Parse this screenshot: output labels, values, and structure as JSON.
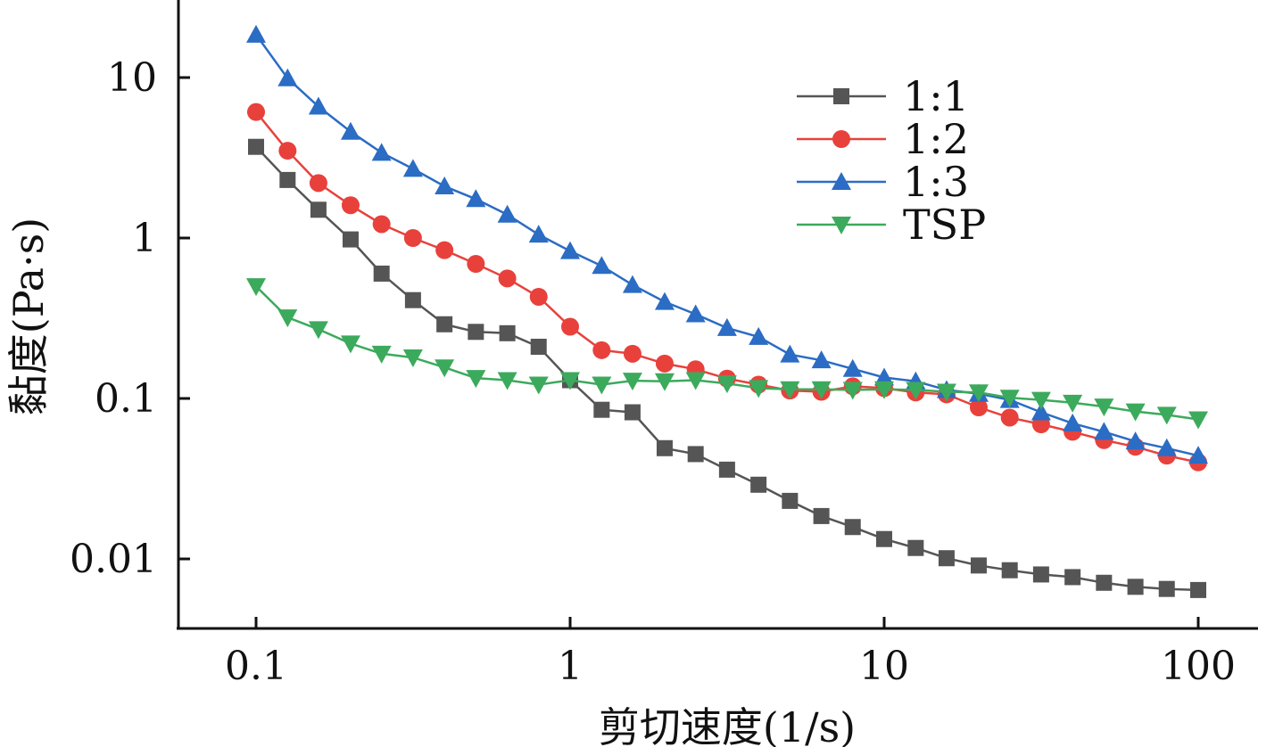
{
  "chart_data": {
    "type": "line",
    "xscale": "log",
    "yscale": "log",
    "xlabel": "剪切速度(1/s)",
    "ylabel": "黏度(Pa·s)",
    "xlim": [
      0.06,
      160
    ],
    "ylim": [
      0.004,
      50
    ],
    "xticks": [
      0.1,
      1,
      10,
      100
    ],
    "xtick_labels": [
      "0.1",
      "1",
      "10",
      "100"
    ],
    "yticks": [
      0.01,
      0.1,
      1,
      10
    ],
    "ytick_labels": [
      "0.01",
      "0.1",
      "1",
      "10"
    ],
    "grid": false,
    "legend_position": "top-right",
    "x": [
      0.1,
      0.126,
      0.158,
      0.2,
      0.251,
      0.316,
      0.398,
      0.501,
      0.631,
      0.794,
      1,
      1.26,
      1.58,
      2,
      2.51,
      3.16,
      3.98,
      5.01,
      6.31,
      7.94,
      10,
      12.6,
      15.8,
      20,
      25.1,
      31.6,
      39.8,
      50.1,
      63.1,
      79.4,
      100
    ],
    "series": [
      {
        "name": "1:1",
        "marker": "square",
        "color": "#555555",
        "values": [
          3.7,
          2.3,
          1.5,
          0.98,
          0.6,
          0.41,
          0.29,
          0.26,
          0.255,
          0.21,
          0.13,
          0.085,
          0.082,
          0.049,
          0.045,
          0.036,
          0.029,
          0.023,
          0.0185,
          0.0158,
          0.0133,
          0.0117,
          0.0101,
          0.0091,
          0.0085,
          0.008,
          0.0077,
          0.0071,
          0.0067,
          0.0065,
          0.0064
        ]
      },
      {
        "name": "1:2",
        "marker": "circle",
        "color": "#e8413c",
        "values": [
          6.1,
          3.5,
          2.2,
          1.6,
          1.22,
          1.0,
          0.84,
          0.69,
          0.56,
          0.43,
          0.28,
          0.2,
          0.19,
          0.165,
          0.152,
          0.133,
          0.122,
          0.112,
          0.11,
          0.119,
          0.116,
          0.109,
          0.106,
          0.088,
          0.076,
          0.069,
          0.062,
          0.055,
          0.05,
          0.044,
          0.04
        ]
      },
      {
        "name": "1:3",
        "marker": "triangle-up",
        "color": "#2b6cc4",
        "values": [
          18.5,
          9.9,
          6.6,
          4.6,
          3.4,
          2.7,
          2.1,
          1.75,
          1.4,
          1.05,
          0.83,
          0.67,
          0.51,
          0.4,
          0.335,
          0.275,
          0.242,
          0.188,
          0.173,
          0.153,
          0.135,
          0.128,
          0.113,
          0.107,
          0.098,
          0.082,
          0.07,
          0.062,
          0.054,
          0.049,
          0.044
        ]
      },
      {
        "name": "TSP",
        "marker": "triangle-down",
        "color": "#3caa5c",
        "values": [
          0.5,
          0.32,
          0.27,
          0.22,
          0.19,
          0.18,
          0.156,
          0.134,
          0.13,
          0.122,
          0.13,
          0.122,
          0.129,
          0.128,
          0.13,
          0.124,
          0.116,
          0.114,
          0.114,
          0.113,
          0.114,
          0.113,
          0.11,
          0.109,
          0.101,
          0.098,
          0.094,
          0.089,
          0.083,
          0.079,
          0.074
        ]
      }
    ]
  }
}
